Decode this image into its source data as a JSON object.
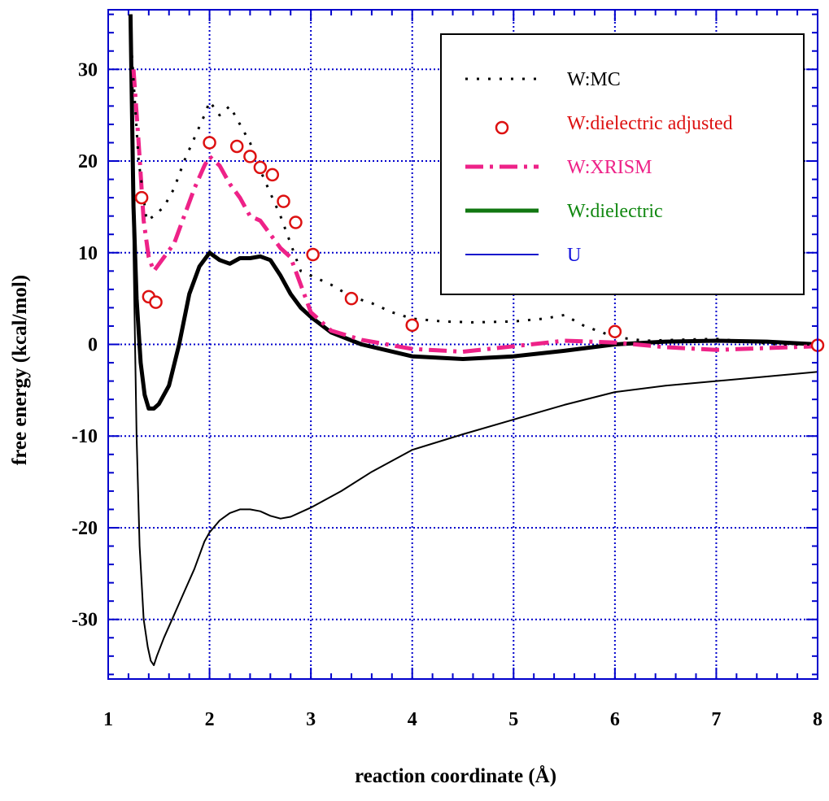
{
  "chart_data": {
    "type": "line",
    "title": "",
    "xlabel": "reaction coordinate (Å)",
    "ylabel": "free energy (kcal/mol)",
    "xlim": [
      1,
      8
    ],
    "ylim": [
      -36.5,
      36.5
    ],
    "x_ticks": [
      "1",
      "2",
      "3",
      "4",
      "5",
      "6",
      "7",
      "8"
    ],
    "y_ticks": [
      "30",
      "20",
      "10",
      "0",
      "-10",
      "-20",
      "-30"
    ],
    "x_tick_values": [
      1,
      2,
      3,
      4,
      5,
      6,
      7,
      8
    ],
    "y_tick_values": [
      30,
      20,
      10,
      0,
      -10,
      -20,
      -30
    ],
    "grid": true,
    "legend_position": "top-right",
    "series": [
      {
        "name": "W:MC",
        "style": "dotted",
        "color": "#000000",
        "width": 3,
        "x": [
          1.22,
          1.3,
          1.38,
          1.45,
          1.55,
          1.65,
          1.75,
          1.85,
          1.95,
          2.0,
          2.1,
          2.2,
          2.3,
          2.4,
          2.5,
          2.6,
          2.7,
          2.8,
          2.9,
          3.0,
          3.2,
          3.4,
          3.6,
          3.8,
          4.0,
          4.3,
          4.6,
          5.0,
          5.3,
          5.5,
          5.7,
          6.0,
          6.3,
          6.6,
          7.0,
          7.3,
          7.6,
          8.0
        ],
        "y": [
          34,
          20,
          13.5,
          14,
          15,
          17,
          20,
          22.5,
          25,
          26.5,
          25,
          26,
          24,
          22,
          19,
          16.5,
          14,
          11,
          8,
          7.5,
          6.5,
          5.2,
          4.5,
          3.5,
          2.8,
          2.5,
          2.4,
          2.5,
          2.8,
          3.2,
          2.0,
          0.8,
          0.4,
          0.5,
          0.6,
          0.3,
          0.0,
          0.0
        ]
      },
      {
        "name": "W:dielectric adjusted",
        "style": "markers",
        "color": "#dd1111",
        "x": [
          1.33,
          1.4,
          1.47,
          2.0,
          2.27,
          2.4,
          2.5,
          2.62,
          2.73,
          2.85,
          3.02,
          3.4,
          4.0,
          6.0,
          8.0
        ],
        "y": [
          16.0,
          5.2,
          4.6,
          22.0,
          21.6,
          20.5,
          19.3,
          18.5,
          15.6,
          13.3,
          9.8,
          5.0,
          2.1,
          1.4,
          -0.1
        ]
      },
      {
        "name": "W:XRISM",
        "style": "dashdot",
        "color": "#ee2288",
        "width": 5,
        "x": [
          1.25,
          1.3,
          1.35,
          1.4,
          1.45,
          1.55,
          1.65,
          1.75,
          1.85,
          1.95,
          2.0,
          2.1,
          2.2,
          2.3,
          2.4,
          2.5,
          2.6,
          2.7,
          2.8,
          2.9,
          3.0,
          3.2,
          3.5,
          4.0,
          4.5,
          5.0,
          5.5,
          6.0,
          6.5,
          7.0,
          7.5,
          8.0
        ],
        "y": [
          30,
          22,
          13.5,
          9.5,
          8,
          9.5,
          11,
          14,
          17,
          19.5,
          20.5,
          19.5,
          17.5,
          16,
          14,
          13.5,
          12,
          10.5,
          9.5,
          6.5,
          3.5,
          1.5,
          0.5,
          -0.5,
          -0.8,
          -0.2,
          0.4,
          0.2,
          -0.3,
          -0.6,
          -0.4,
          -0.2
        ]
      },
      {
        "name": "W:dielectric",
        "style": "solid",
        "color": "#000000",
        "width": 5,
        "x": [
          1.22,
          1.25,
          1.28,
          1.32,
          1.36,
          1.4,
          1.45,
          1.5,
          1.6,
          1.7,
          1.8,
          1.9,
          2.0,
          2.1,
          2.2,
          2.3,
          2.4,
          2.5,
          2.6,
          2.7,
          2.8,
          2.9,
          3.0,
          3.2,
          3.5,
          4.0,
          4.5,
          5.0,
          5.5,
          6.0,
          6.5,
          7.0,
          7.5,
          8.0
        ],
        "y": [
          36,
          15,
          5,
          -2,
          -5.5,
          -7,
          -7,
          -6.5,
          -4.5,
          0,
          5.5,
          8.5,
          10,
          9.2,
          8.8,
          9.4,
          9.4,
          9.6,
          9.2,
          7.5,
          5.5,
          4,
          3,
          1.3,
          0,
          -1.3,
          -1.6,
          -1.3,
          -0.7,
          0,
          0.3,
          0.4,
          0.3,
          0.0
        ]
      },
      {
        "name": "U",
        "style": "solid",
        "color": "#000000",
        "width": 2,
        "x": [
          1.22,
          1.25,
          1.28,
          1.31,
          1.35,
          1.39,
          1.42,
          1.45,
          1.48,
          1.55,
          1.65,
          1.75,
          1.85,
          1.95,
          2.0,
          2.1,
          2.2,
          2.3,
          2.4,
          2.5,
          2.6,
          2.7,
          2.8,
          3.0,
          3.3,
          3.6,
          4.0,
          4.5,
          5.0,
          5.5,
          6.0,
          6.5,
          7.0,
          7.5,
          8.0
        ],
        "y": [
          36,
          10,
          -10,
          -22,
          -30,
          -33,
          -34.5,
          -35,
          -34,
          -32,
          -29.5,
          -27,
          -24.5,
          -21.5,
          -20.5,
          -19.2,
          -18.4,
          -18.0,
          -18.0,
          -18.2,
          -18.7,
          -19.0,
          -18.8,
          -17.8,
          -16.0,
          -13.9,
          -11.5,
          -9.8,
          -8.2,
          -6.6,
          -5.2,
          -4.5,
          -4.0,
          -3.5,
          -3.0
        ]
      }
    ],
    "legend": [
      {
        "label": "W:MC",
        "text_color": "#000000",
        "swatch": "dotted",
        "swatch_color": "#000000"
      },
      {
        "label": "W:dielectric adjusted",
        "text_color": "#dd1111",
        "swatch": "marker",
        "swatch_color": "#dd1111"
      },
      {
        "label": "W:XRISM",
        "text_color": "#ee2288",
        "swatch": "dashdot",
        "swatch_color": "#ee2288"
      },
      {
        "label": "W:dielectric",
        "text_color": "#118811",
        "swatch": "solid",
        "swatch_color": "#117711"
      },
      {
        "label": "U",
        "text_color": "#1111dd",
        "swatch": "solid",
        "swatch_color": "#1111cc"
      }
    ],
    "colors": {
      "axis": "#0000cc",
      "grid": "#0000cc",
      "background": "#ffffff"
    }
  }
}
